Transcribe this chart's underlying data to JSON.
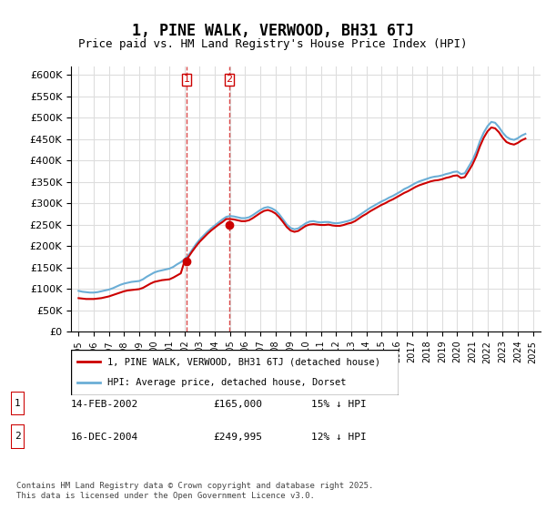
{
  "title": "1, PINE WALK, VERWOOD, BH31 6TJ",
  "subtitle": "Price paid vs. HM Land Registry's House Price Index (HPI)",
  "xlabel": "",
  "ylabel": "",
  "ylim": [
    0,
    620000
  ],
  "yticks": [
    0,
    50000,
    100000,
    150000,
    200000,
    250000,
    300000,
    350000,
    400000,
    450000,
    500000,
    550000,
    600000
  ],
  "ytick_labels": [
    "£0",
    "£50K",
    "£100K",
    "£150K",
    "£200K",
    "£250K",
    "£300K",
    "£350K",
    "£400K",
    "£450K",
    "£500K",
    "£550K",
    "£600K"
  ],
  "hpi_color": "#6baed6",
  "price_color": "#cc0000",
  "legend_labels": [
    "1, PINE WALK, VERWOOD, BH31 6TJ (detached house)",
    "HPI: Average price, detached house, Dorset"
  ],
  "sale1_date": "14-FEB-2002",
  "sale1_price": "£165,000",
  "sale1_hpi": "15% ↓ HPI",
  "sale2_date": "16-DEC-2004",
  "sale2_price": "£249,995",
  "sale2_hpi": "12% ↓ HPI",
  "footer": "Contains HM Land Registry data © Crown copyright and database right 2025.\nThis data is licensed under the Open Government Licence v3.0.",
  "hpi_data": {
    "years": [
      1995.0,
      1995.25,
      1995.5,
      1995.75,
      1996.0,
      1996.25,
      1996.5,
      1996.75,
      1997.0,
      1997.25,
      1997.5,
      1997.75,
      1998.0,
      1998.25,
      1998.5,
      1998.75,
      1999.0,
      1999.25,
      1999.5,
      1999.75,
      2000.0,
      2000.25,
      2000.5,
      2000.75,
      2001.0,
      2001.25,
      2001.5,
      2001.75,
      2002.0,
      2002.25,
      2002.5,
      2002.75,
      2003.0,
      2003.25,
      2003.5,
      2003.75,
      2004.0,
      2004.25,
      2004.5,
      2004.75,
      2005.0,
      2005.25,
      2005.5,
      2005.75,
      2006.0,
      2006.25,
      2006.5,
      2006.75,
      2007.0,
      2007.25,
      2007.5,
      2007.75,
      2008.0,
      2008.25,
      2008.5,
      2008.75,
      2009.0,
      2009.25,
      2009.5,
      2009.75,
      2010.0,
      2010.25,
      2010.5,
      2010.75,
      2011.0,
      2011.25,
      2011.5,
      2011.75,
      2012.0,
      2012.25,
      2012.5,
      2012.75,
      2013.0,
      2013.25,
      2013.5,
      2013.75,
      2014.0,
      2014.25,
      2014.5,
      2014.75,
      2015.0,
      2015.25,
      2015.5,
      2015.75,
      2016.0,
      2016.25,
      2016.5,
      2016.75,
      2017.0,
      2017.25,
      2017.5,
      2017.75,
      2018.0,
      2018.25,
      2018.5,
      2018.75,
      2019.0,
      2019.25,
      2019.5,
      2019.75,
      2020.0,
      2020.25,
      2020.5,
      2020.75,
      2021.0,
      2021.25,
      2021.5,
      2021.75,
      2022.0,
      2022.25,
      2022.5,
      2022.75,
      2023.0,
      2023.25,
      2023.5,
      2023.75,
      2024.0,
      2024.25,
      2024.5
    ],
    "values": [
      95000,
      93000,
      92000,
      91000,
      91000,
      92000,
      94000,
      96000,
      98000,
      101000,
      105000,
      109000,
      112000,
      114000,
      116000,
      117000,
      118000,
      122000,
      128000,
      133000,
      138000,
      141000,
      143000,
      145000,
      147000,
      151000,
      157000,
      162000,
      169000,
      178000,
      191000,
      204000,
      215000,
      224000,
      233000,
      241000,
      248000,
      255000,
      262000,
      268000,
      270000,
      269000,
      267000,
      265000,
      265000,
      267000,
      272000,
      278000,
      284000,
      289000,
      291000,
      288000,
      283000,
      274000,
      262000,
      250000,
      242000,
      239000,
      241000,
      247000,
      253000,
      257000,
      258000,
      256000,
      255000,
      256000,
      256000,
      254000,
      253000,
      254000,
      256000,
      258000,
      261000,
      265000,
      271000,
      277000,
      283000,
      289000,
      294000,
      299000,
      304000,
      308000,
      313000,
      317000,
      322000,
      327000,
      333000,
      337000,
      342000,
      347000,
      351000,
      354000,
      357000,
      360000,
      362000,
      363000,
      365000,
      368000,
      370000,
      373000,
      374000,
      368000,
      370000,
      385000,
      400000,
      420000,
      445000,
      465000,
      480000,
      490000,
      488000,
      478000,
      465000,
      455000,
      450000,
      448000,
      452000,
      458000,
      462000
    ]
  },
  "price_data": {
    "years": [
      1995.0,
      1995.25,
      1995.5,
      1995.75,
      1996.0,
      1996.25,
      1996.5,
      1996.75,
      1997.0,
      1997.25,
      1997.5,
      1997.75,
      1998.0,
      1998.25,
      1998.5,
      1998.75,
      1999.0,
      1999.25,
      1999.5,
      1999.75,
      2000.0,
      2000.25,
      2000.5,
      2000.75,
      2001.0,
      2001.25,
      2001.5,
      2001.75,
      2002.0,
      2002.25,
      2002.5,
      2002.75,
      2003.0,
      2003.25,
      2003.5,
      2003.75,
      2004.0,
      2004.25,
      2004.5,
      2004.75,
      2005.0,
      2005.25,
      2005.5,
      2005.75,
      2006.0,
      2006.25,
      2006.5,
      2006.75,
      2007.0,
      2007.25,
      2007.5,
      2007.75,
      2008.0,
      2008.25,
      2008.5,
      2008.75,
      2009.0,
      2009.25,
      2009.5,
      2009.75,
      2010.0,
      2010.25,
      2010.5,
      2010.75,
      2011.0,
      2011.25,
      2011.5,
      2011.75,
      2012.0,
      2012.25,
      2012.5,
      2012.75,
      2013.0,
      2013.25,
      2013.5,
      2013.75,
      2014.0,
      2014.25,
      2014.5,
      2014.75,
      2015.0,
      2015.25,
      2015.5,
      2015.75,
      2016.0,
      2016.25,
      2016.5,
      2016.75,
      2017.0,
      2017.25,
      2017.5,
      2017.75,
      2018.0,
      2018.25,
      2018.5,
      2018.75,
      2019.0,
      2019.25,
      2019.5,
      2019.75,
      2020.0,
      2020.25,
      2020.5,
      2020.75,
      2021.0,
      2021.25,
      2021.5,
      2021.75,
      2022.0,
      2022.25,
      2022.5,
      2022.75,
      2023.0,
      2023.25,
      2023.5,
      2023.75,
      2024.0,
      2024.25,
      2024.5
    ],
    "values": [
      78000,
      77000,
      76000,
      76000,
      76000,
      77000,
      78000,
      80000,
      82000,
      85000,
      88000,
      91000,
      94000,
      96000,
      97000,
      98000,
      99000,
      102000,
      107000,
      112000,
      116000,
      118000,
      120000,
      121000,
      122000,
      126000,
      131000,
      136000,
      165000,
      174000,
      187000,
      199000,
      210000,
      219000,
      228000,
      236000,
      243000,
      250000,
      256000,
      263000,
      263000,
      262000,
      260000,
      258000,
      258000,
      260000,
      265000,
      271000,
      277000,
      282000,
      284000,
      281000,
      276000,
      267000,
      256000,
      244000,
      236000,
      233000,
      235000,
      241000,
      247000,
      250000,
      251000,
      250000,
      249000,
      249000,
      250000,
      248000,
      247000,
      247000,
      249000,
      252000,
      254000,
      258000,
      264000,
      270000,
      275000,
      281000,
      286000,
      291000,
      296000,
      300000,
      305000,
      309000,
      314000,
      319000,
      324000,
      328000,
      333000,
      338000,
      342000,
      345000,
      348000,
      351000,
      353000,
      354000,
      356000,
      359000,
      361000,
      364000,
      365000,
      359000,
      361000,
      375000,
      390000,
      409000,
      433000,
      453000,
      468000,
      477000,
      475000,
      466000,
      453000,
      443000,
      439000,
      437000,
      441000,
      447000,
      451000
    ]
  },
  "sale1_year": 2002.12,
  "sale2_year": 2004.96,
  "sale1_price_val": 165000,
  "sale2_price_val": 249995,
  "xtick_years": [
    1995,
    1996,
    1997,
    1998,
    1999,
    2000,
    2001,
    2002,
    2003,
    2004,
    2005,
    2006,
    2007,
    2008,
    2009,
    2010,
    2011,
    2012,
    2013,
    2014,
    2015,
    2016,
    2017,
    2018,
    2019,
    2020,
    2021,
    2022,
    2023,
    2024,
    2025
  ]
}
